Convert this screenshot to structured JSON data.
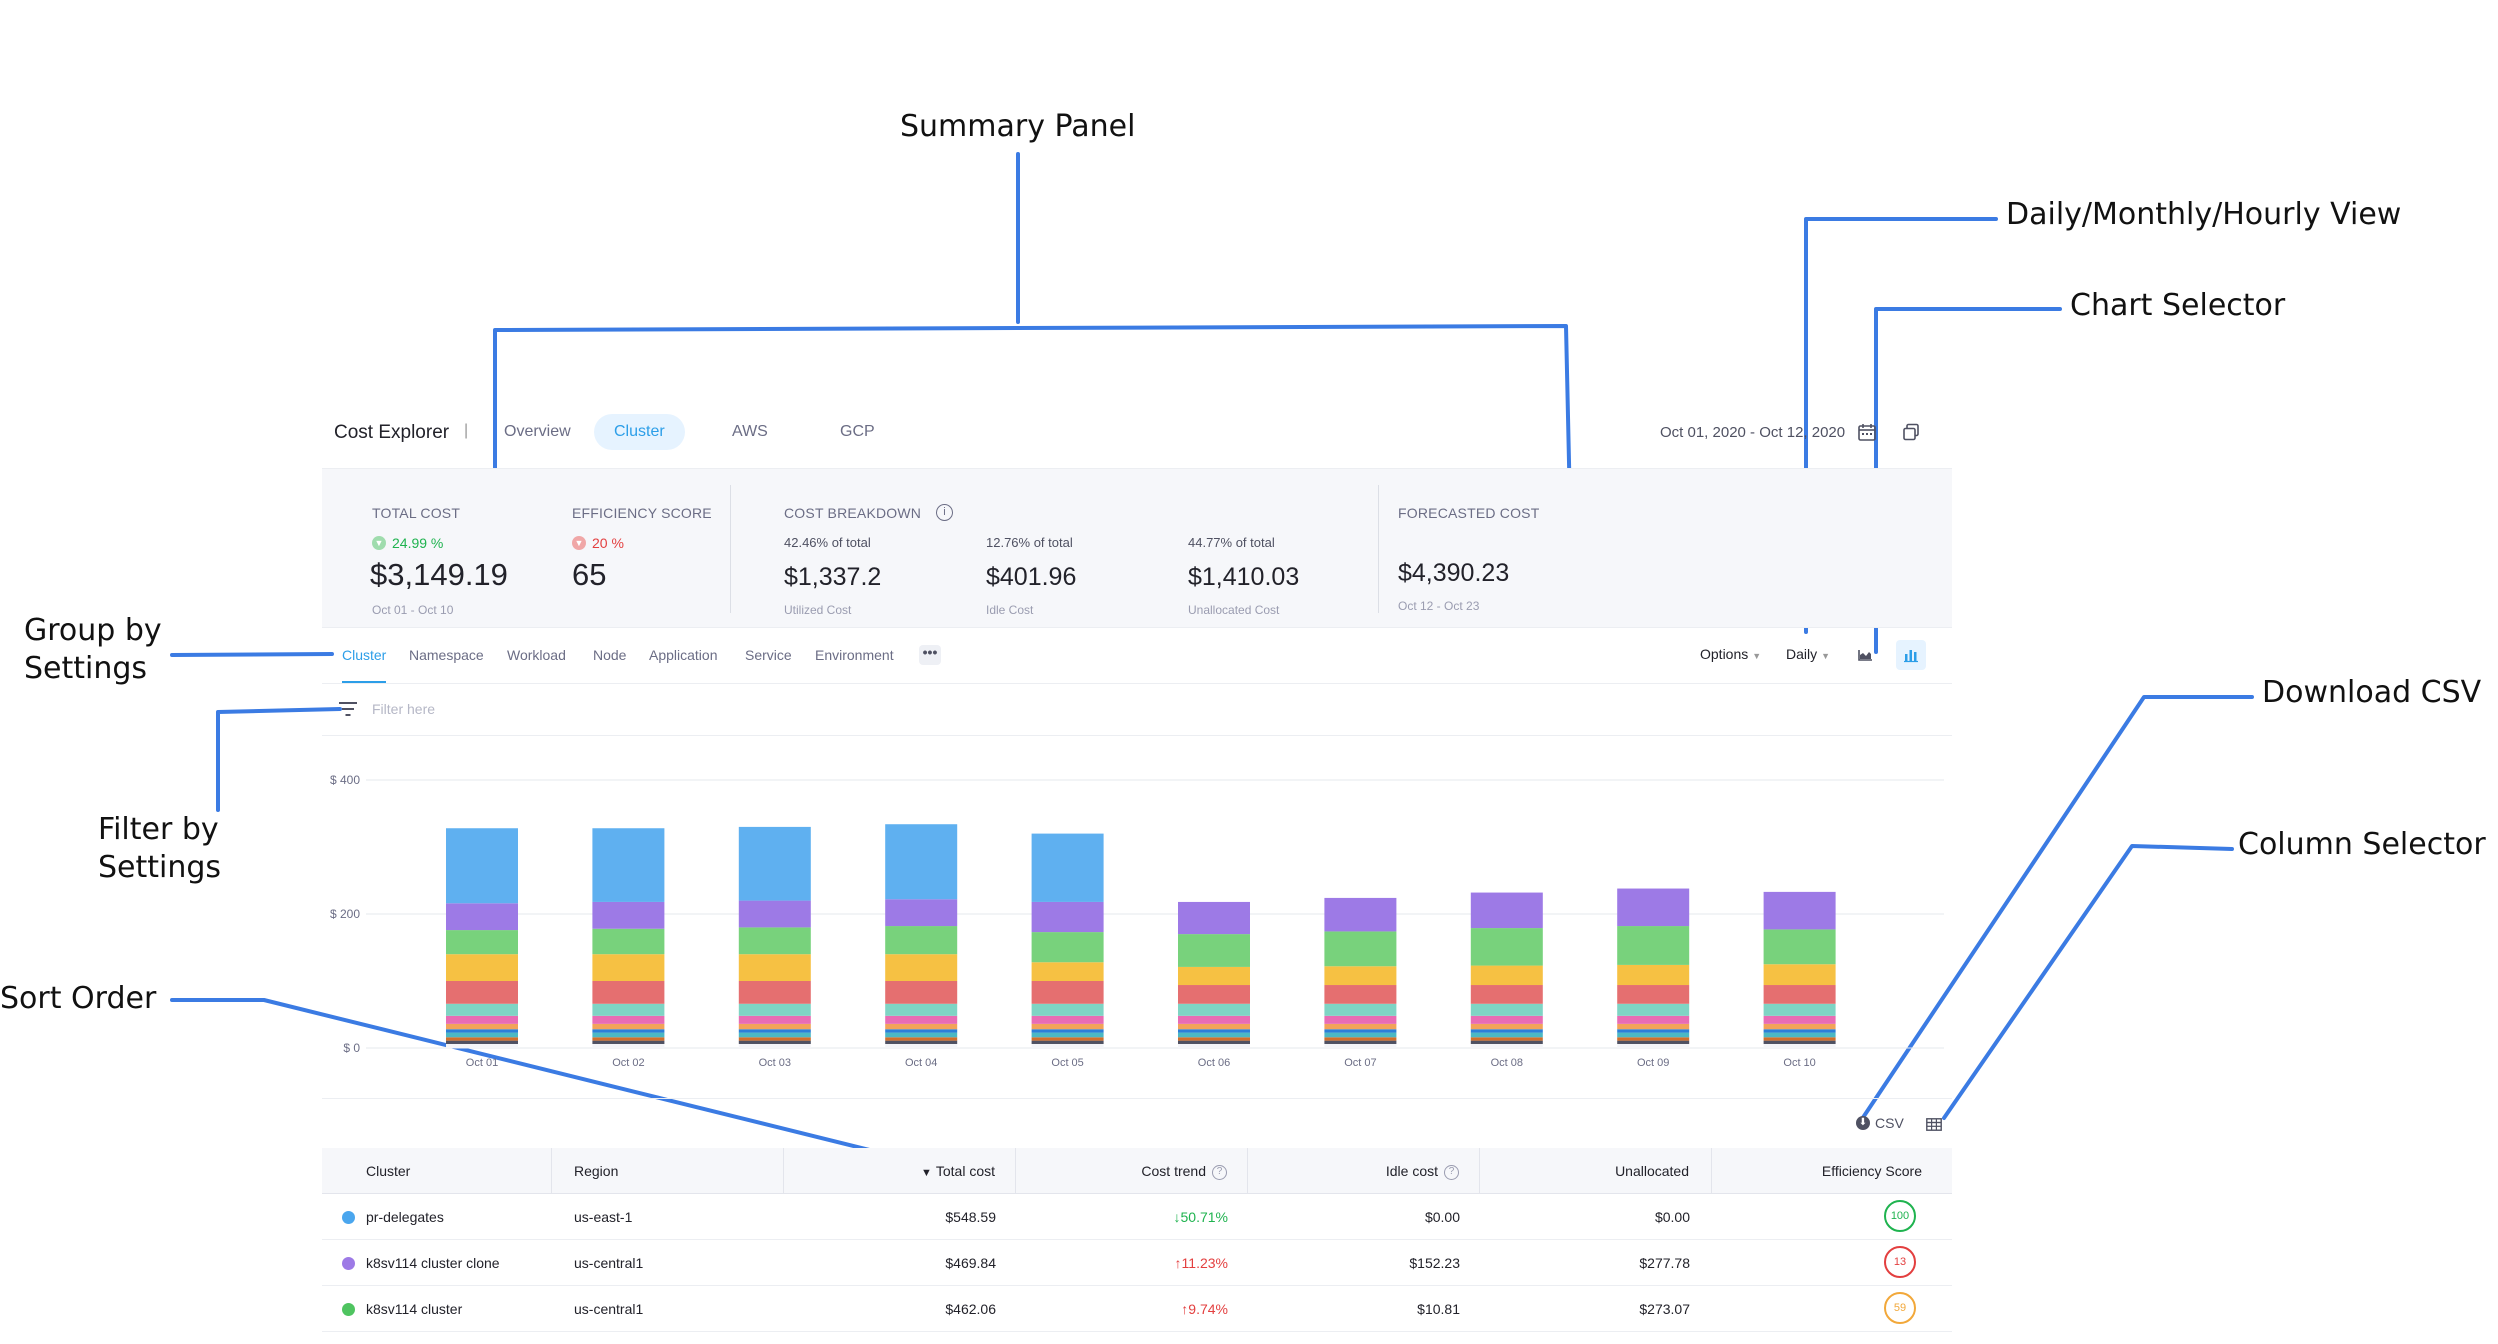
{
  "annotations": {
    "summary_panel": "Summary Panel",
    "view_mode": "Daily/Monthly/Hourly View",
    "chart_selector": "Chart Selector",
    "group_by": "Group by\nSettings",
    "download_csv": "Download CSV",
    "filter_by": "Filter by\nSettings",
    "column_selector": "Column Selector",
    "sort_order": "Sort Order"
  },
  "header": {
    "title": "Cost Explorer",
    "separator": "|",
    "tabs": [
      {
        "label": "Overview",
        "active": false
      },
      {
        "label": "Cluster",
        "active": true
      },
      {
        "label": "AWS",
        "active": false
      },
      {
        "label": "GCP",
        "active": false
      }
    ],
    "date_range": "Oct 01, 2020 - Oct 12, 2020"
  },
  "summary": {
    "total_cost": {
      "heading": "TOTAL COST",
      "change": "24.99 %",
      "value": "$3,149.19",
      "period": "Oct 01 - Oct 10"
    },
    "efficiency": {
      "heading": "EFFICIENCY SCORE",
      "change": "20 %",
      "value": "65"
    },
    "breakdown": {
      "heading": "COST BREAKDOWN",
      "items": [
        {
          "pct": "42.46% of total",
          "value": "$1,337.2",
          "label": "Utilized Cost"
        },
        {
          "pct": "12.76% of total",
          "value": "$401.96",
          "label": "Idle Cost"
        },
        {
          "pct": "44.77% of total",
          "value": "$1,410.03",
          "label": "Unallocated Cost"
        }
      ]
    },
    "forecast": {
      "heading": "FORECASTED COST",
      "value": "$4,390.23",
      "period": "Oct 12 - Oct 23"
    }
  },
  "group_by": {
    "tabs": [
      {
        "label": "Cluster",
        "active": true
      },
      {
        "label": "Namespace",
        "active": false
      },
      {
        "label": "Workload",
        "active": false
      },
      {
        "label": "Node",
        "active": false
      },
      {
        "label": "Application",
        "active": false
      },
      {
        "label": "Service",
        "active": false
      },
      {
        "label": "Environment",
        "active": false
      }
    ],
    "more": "•••",
    "options_label": "Options",
    "view_label": "Daily"
  },
  "filter": {
    "placeholder": "Filter here"
  },
  "chart_data": {
    "type": "bar",
    "stacked": true,
    "categories": [
      "Oct 01",
      "Oct 02",
      "Oct 03",
      "Oct 04",
      "Oct 05",
      "Oct 06",
      "Oct 07",
      "Oct 08",
      "Oct 09",
      "Oct 10"
    ],
    "y_ticks": [
      "$ 0",
      "$ 200",
      "$ 400"
    ],
    "ylim": [
      0,
      400
    ],
    "grid": true,
    "colors": [
      "#f4f5f8",
      "#4f5162",
      "#d06f2c",
      "#4bb8c4",
      "#2c7fd8",
      "#f2a359",
      "#e86cb4",
      "#7fd4c4",
      "#e56f70",
      "#f6c143",
      "#78d27c",
      "#9d7ae6",
      "#5fb0f0"
    ],
    "series": [
      {
        "values": [
          6,
          6,
          6,
          6,
          6,
          6,
          6,
          6,
          6,
          6
        ]
      },
      {
        "values": [
          5,
          5,
          5,
          5,
          5,
          5,
          5,
          5,
          5,
          5
        ]
      },
      {
        "values": [
          5,
          5,
          5,
          5,
          5,
          5,
          5,
          5,
          5,
          5
        ]
      },
      {
        "values": [
          7,
          7,
          7,
          7,
          7,
          7,
          7,
          7,
          7,
          7
        ]
      },
      {
        "values": [
          5,
          5,
          5,
          5,
          5,
          5,
          5,
          5,
          5,
          5
        ]
      },
      {
        "values": [
          8,
          8,
          8,
          8,
          8,
          8,
          8,
          8,
          8,
          8
        ]
      },
      {
        "values": [
          12,
          12,
          12,
          12,
          12,
          12,
          12,
          12,
          12,
          12
        ]
      },
      {
        "values": [
          18,
          18,
          18,
          18,
          18,
          18,
          18,
          18,
          18,
          18
        ]
      },
      {
        "values": [
          34,
          34,
          34,
          34,
          34,
          28,
          28,
          28,
          28,
          28
        ]
      },
      {
        "values": [
          40,
          40,
          40,
          40,
          28,
          27,
          28,
          29,
          30,
          31
        ]
      },
      {
        "values": [
          36,
          38,
          40,
          42,
          45,
          49,
          52,
          56,
          58,
          52
        ]
      },
      {
        "values": [
          40,
          40,
          40,
          40,
          45,
          48,
          50,
          53,
          56,
          56
        ]
      },
      {
        "values": [
          112,
          110,
          110,
          112,
          102,
          0,
          0,
          0,
          0,
          0
        ]
      }
    ]
  },
  "csv": {
    "label": "CSV"
  },
  "table": {
    "columns": [
      "Cluster",
      "Region",
      "Total cost",
      "Cost trend",
      "Idle cost",
      "Unallocated",
      "Efficiency Score"
    ],
    "sort_indicator": "▼",
    "rows": [
      {
        "cluster": "pr-delegates",
        "color": "#4aa6ee",
        "region": "us-east-1",
        "total": "$548.59",
        "trend": "↓50.71%",
        "trend_dir": "down",
        "idle": "$0.00",
        "unallocated": "$0.00",
        "score": "100",
        "score_color": "#1fb34f"
      },
      {
        "cluster": "k8sv114 cluster clone",
        "color": "#9d7ae6",
        "region": "us-central1",
        "total": "$469.84",
        "trend": "↑11.23%",
        "trend_dir": "up",
        "idle": "$152.23",
        "unallocated": "$277.78",
        "score": "13",
        "score_color": "#e33f3f"
      },
      {
        "cluster": "k8sv114 cluster",
        "color": "#4fc460",
        "region": "us-central1",
        "total": "$462.06",
        "trend": "↑9.74%",
        "trend_dir": "up",
        "idle": "$10.81",
        "unallocated": "$273.07",
        "score": "59",
        "score_color": "#f2a83a"
      }
    ]
  }
}
